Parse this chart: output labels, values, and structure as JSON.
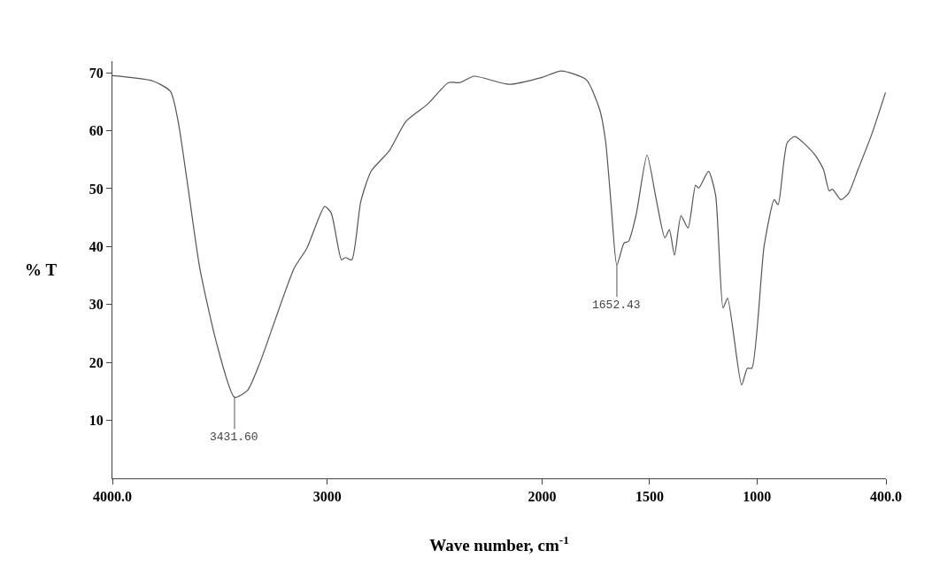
{
  "chart_data": {
    "type": "line",
    "xlabel": "Wave number, cm$^{-1}$",
    "ylabel": "% T",
    "x": [
      4000,
      3814,
      3730,
      3694,
      3653,
      3593,
      3515,
      3431.6,
      3371,
      3311,
      3155,
      3095,
      3012,
      2982,
      2934,
      2916,
      2886,
      2844,
      2796,
      2712,
      2634,
      2532,
      2436,
      2383,
      2317,
      2155,
      2000,
      1911,
      1795,
      1732,
      1705,
      1679,
      1652.43,
      1619,
      1598,
      1562,
      1512,
      1470,
      1429,
      1408,
      1384,
      1354,
      1321,
      1286,
      1271,
      1226,
      1193,
      1158,
      1137,
      1072,
      1045,
      1024,
      967,
      920,
      902,
      860,
      824,
      732,
      691,
      664,
      649,
      610,
      574,
      530,
      467,
      402
    ],
    "series": [
      {
        "color": "#555555",
        "values": [
          69.5,
          68.6,
          66.8,
          61.6,
          51.5,
          36.2,
          23.3,
          14.0,
          15.2,
          20.2,
          36.2,
          39.7,
          46.9,
          45.8,
          37.7,
          38.1,
          37.7,
          47.8,
          53.0,
          56.5,
          61.6,
          64.6,
          68.3,
          68.3,
          69.4,
          68.0,
          69.2,
          70.3,
          68.8,
          63.6,
          58.2,
          47.2,
          36.8,
          40.6,
          40.9,
          45.6,
          55.8,
          48.3,
          41.5,
          42.9,
          38.5,
          45.3,
          43.2,
          50.6,
          50.1,
          53.0,
          48.9,
          29.4,
          31.1,
          16.1,
          19.0,
          19.0,
          40.1,
          48.1,
          47.2,
          57.9,
          59.0,
          55.9,
          53.3,
          49.6,
          49.9,
          48.1,
          49.2,
          53.3,
          59.3,
          66.6
        ]
      }
    ],
    "xlim": [
      4000,
      400
    ],
    "xticks": [
      {
        "value": 4000,
        "label": "4000.0"
      },
      3000,
      2000,
      1500,
      1000,
      {
        "value": 400,
        "label": "400.0"
      }
    ],
    "ylim": [
      0,
      72
    ],
    "yticks": [
      10,
      20,
      30,
      40,
      50,
      60,
      70
    ],
    "annotations": [
      {
        "text": "3431.60",
        "x": 3431.6,
        "y": 14.0
      },
      {
        "text": "1652.43",
        "x": 1652.43,
        "y": 36.8
      }
    ],
    "marker": "none",
    "line_style": "solid"
  }
}
